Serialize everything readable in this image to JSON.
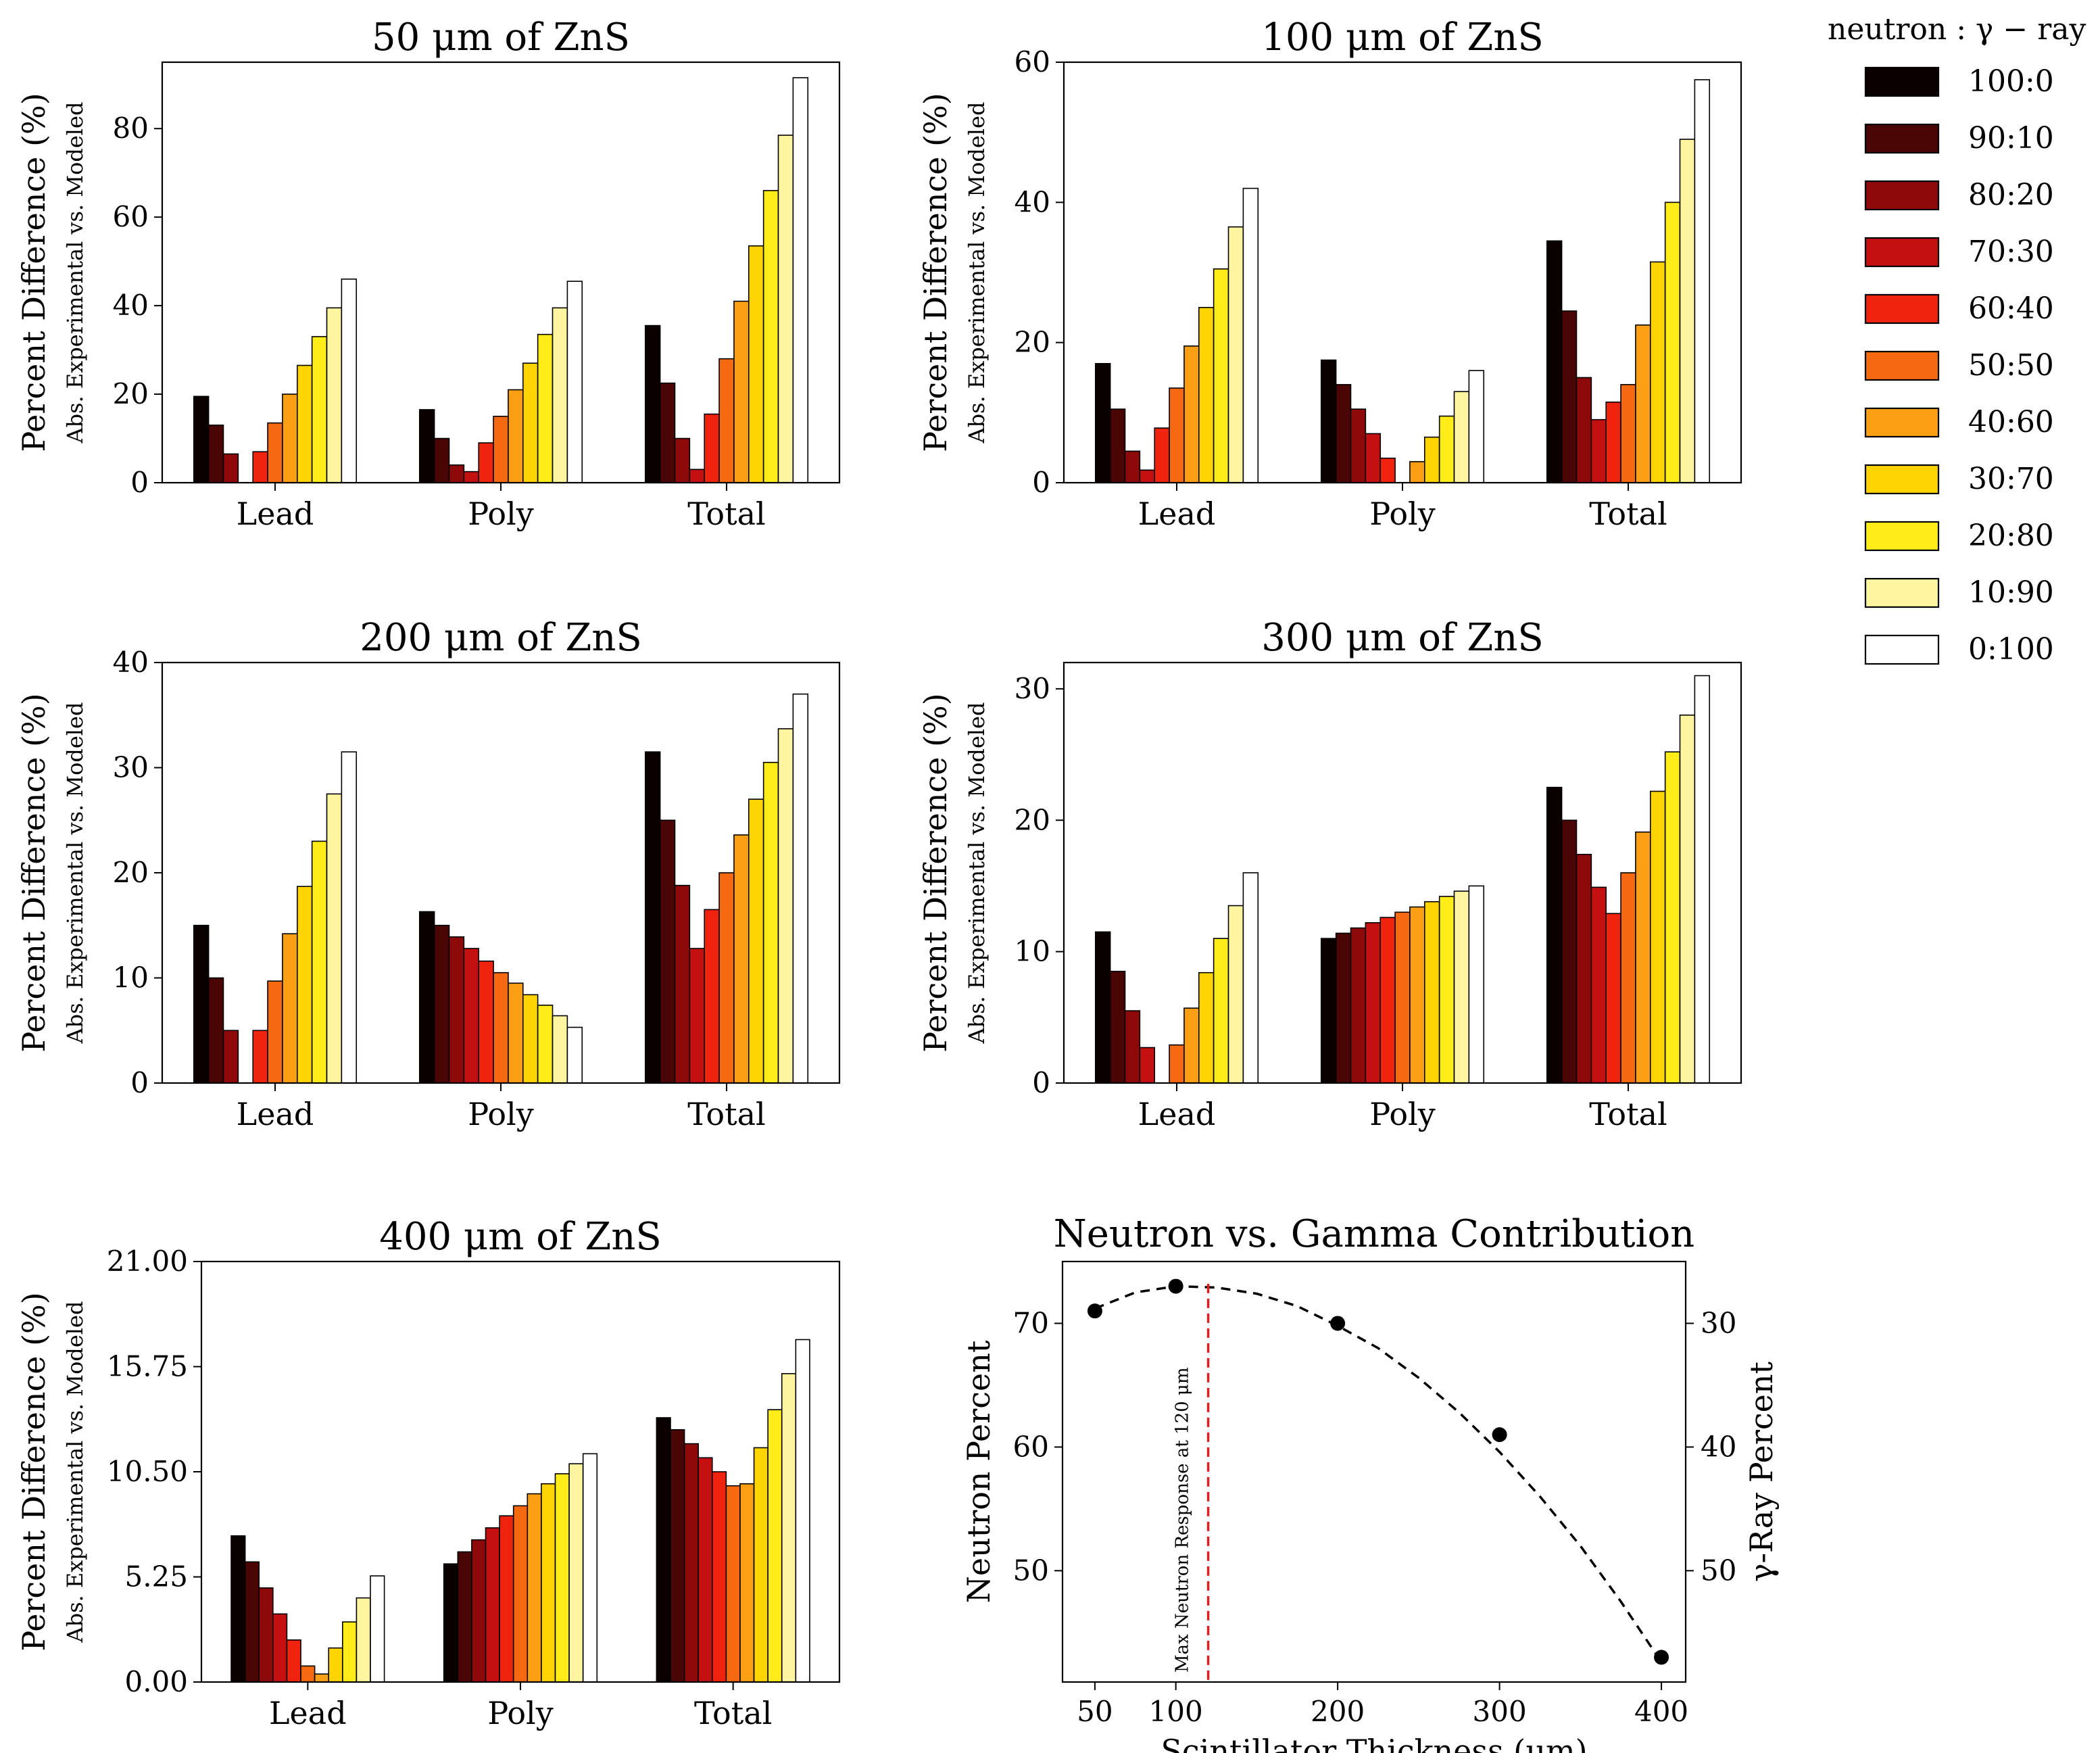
{
  "legend": {
    "title": "neutron : γ − ray",
    "entries": [
      "100:0",
      "90:10",
      "80:20",
      "70:30",
      "60:40",
      "50:50",
      "40:60",
      "30:70",
      "20:80",
      "10:90",
      "0:100"
    ],
    "colors": [
      "#0b0000",
      "#4a0505",
      "#8e0a0a",
      "#c41010",
      "#f0240e",
      "#f56a10",
      "#fba014",
      "#ffd400",
      "#ffec18",
      "#fff5a0",
      "#ffffff"
    ]
  },
  "chart_data": [
    {
      "type": "bar",
      "title": "50 μm of ZnS",
      "ylabel": "Percent Difference (%)",
      "ysublabel": "Abs. Experimental vs. Modeled",
      "categories": [
        "Lead",
        "Poly",
        "Total"
      ],
      "ylim": [
        0,
        95
      ],
      "yticks": [
        0,
        20,
        40,
        60,
        80
      ],
      "ytick_labels": [
        "0",
        "20",
        "40",
        "60",
        "80"
      ],
      "series_values": [
        [
          19.5,
          13.0,
          6.5,
          0.0,
          7.0,
          13.5,
          20.0,
          26.5,
          33.0,
          39.5,
          46.0
        ],
        [
          16.5,
          10.0,
          4.0,
          2.5,
          9.0,
          15.0,
          21.0,
          27.0,
          33.5,
          39.5,
          45.5
        ],
        [
          35.5,
          22.5,
          10.0,
          3.0,
          15.5,
          28.0,
          41.0,
          53.5,
          66.0,
          78.5,
          91.5
        ]
      ]
    },
    {
      "type": "bar",
      "title": "100 μm of ZnS",
      "ylabel": "Percent Difference (%)",
      "ysublabel": "Abs. Experimental vs. Modeled",
      "categories": [
        "Lead",
        "Poly",
        "Total"
      ],
      "ylim": [
        0,
        60
      ],
      "yticks": [
        0,
        20,
        40,
        60
      ],
      "ytick_labels": [
        "0",
        "20",
        "40",
        "60"
      ],
      "series_values": [
        [
          17.0,
          10.5,
          4.5,
          1.8,
          7.8,
          13.5,
          19.5,
          25.0,
          30.5,
          36.5,
          42.0
        ],
        [
          17.5,
          14.0,
          10.5,
          7.0,
          3.5,
          0.0,
          3.0,
          6.5,
          9.5,
          13.0,
          16.0
        ],
        [
          34.5,
          24.5,
          15.0,
          9.0,
          11.5,
          14.0,
          22.5,
          31.5,
          40.0,
          49.0,
          57.5
        ]
      ]
    },
    {
      "type": "bar",
      "title": "200 μm of ZnS",
      "ylabel": "Percent Difference (%)",
      "ysublabel": "Abs. Experimental vs. Modeled",
      "categories": [
        "Lead",
        "Poly",
        "Total"
      ],
      "ylim": [
        0,
        40
      ],
      "yticks": [
        0,
        10,
        20,
        30,
        40
      ],
      "ytick_labels": [
        "0",
        "10",
        "20",
        "30",
        "40"
      ],
      "series_values": [
        [
          15.0,
          10.0,
          5.0,
          0.0,
          5.0,
          9.7,
          14.2,
          18.7,
          23.0,
          27.5,
          31.5
        ],
        [
          16.3,
          15.0,
          13.9,
          12.8,
          11.6,
          10.5,
          9.5,
          8.4,
          7.4,
          6.4,
          5.3
        ],
        [
          31.5,
          25.0,
          18.8,
          12.8,
          16.5,
          20.0,
          23.6,
          27.0,
          30.5,
          33.7,
          37.0
        ]
      ]
    },
    {
      "type": "bar",
      "title": "300 μm of ZnS",
      "ylabel": "Percent Difference (%)",
      "ysublabel": "Abs. Experimental vs. Modeled",
      "categories": [
        "Lead",
        "Poly",
        "Total"
      ],
      "ylim": [
        0,
        32
      ],
      "yticks": [
        0,
        10,
        20,
        30
      ],
      "ytick_labels": [
        "0",
        "10",
        "20",
        "30"
      ],
      "series_values": [
        [
          11.5,
          8.5,
          5.5,
          2.7,
          0.0,
          2.9,
          5.7,
          8.4,
          11.0,
          13.5,
          16.0
        ],
        [
          11.0,
          11.4,
          11.8,
          12.2,
          12.6,
          13.0,
          13.4,
          13.8,
          14.2,
          14.6,
          15.0
        ],
        [
          22.5,
          20.0,
          17.4,
          14.9,
          12.9,
          16.0,
          19.1,
          22.2,
          25.2,
          28.0,
          31.0
        ]
      ]
    },
    {
      "type": "bar",
      "title": "400 μm of ZnS",
      "ylabel": "Percent Difference (%)",
      "ysublabel": "Abs. Experimental vs. Modeled",
      "categories": [
        "Lead",
        "Poly",
        "Total"
      ],
      "ylim": [
        0,
        21
      ],
      "yticks": [
        0,
        5.25,
        10.5,
        15.75,
        21
      ],
      "ytick_labels": [
        "0.00",
        "5.25",
        "10.50",
        "15.75",
        "21.00"
      ],
      "series_values": [
        [
          7.3,
          6.0,
          4.7,
          3.4,
          2.1,
          0.8,
          0.4,
          1.7,
          3.0,
          4.2,
          5.3
        ],
        [
          5.9,
          6.5,
          7.1,
          7.7,
          8.3,
          8.8,
          9.4,
          9.9,
          10.4,
          10.9,
          11.4
        ],
        [
          13.2,
          12.6,
          11.9,
          11.2,
          10.5,
          9.8,
          9.9,
          11.7,
          13.6,
          15.4,
          17.1
        ]
      ]
    },
    {
      "type": "scatter",
      "title": "Neutron vs. Gamma Contribution",
      "xlabel": "Scintillator Thickness (μm)",
      "ylabel": "Neutron Percent",
      "y2label": "γ-Ray Percent",
      "x": [
        50,
        100,
        200,
        300,
        400
      ],
      "y": [
        71,
        73,
        70,
        61,
        43
      ],
      "fit_curve": [
        [
          50,
          71.2
        ],
        [
          75,
          72.5
        ],
        [
          100,
          73.0
        ],
        [
          125,
          72.9
        ],
        [
          150,
          72.4
        ],
        [
          175,
          71.4
        ],
        [
          200,
          69.8
        ],
        [
          225,
          68.0
        ],
        [
          250,
          65.6
        ],
        [
          275,
          62.8
        ],
        [
          300,
          59.6
        ],
        [
          325,
          56.0
        ],
        [
          350,
          52.0
        ],
        [
          375,
          47.5
        ],
        [
          400,
          42.6
        ]
      ],
      "xlim": [
        30,
        415
      ],
      "ylim": [
        41,
        75
      ],
      "xticks": [
        50,
        100,
        200,
        300,
        400
      ],
      "yticks": [
        50,
        60,
        70
      ],
      "y2ticks": [
        30,
        40,
        50
      ],
      "vline": {
        "x": 120,
        "label": "Max Neutron Response at 120 μm"
      }
    }
  ]
}
